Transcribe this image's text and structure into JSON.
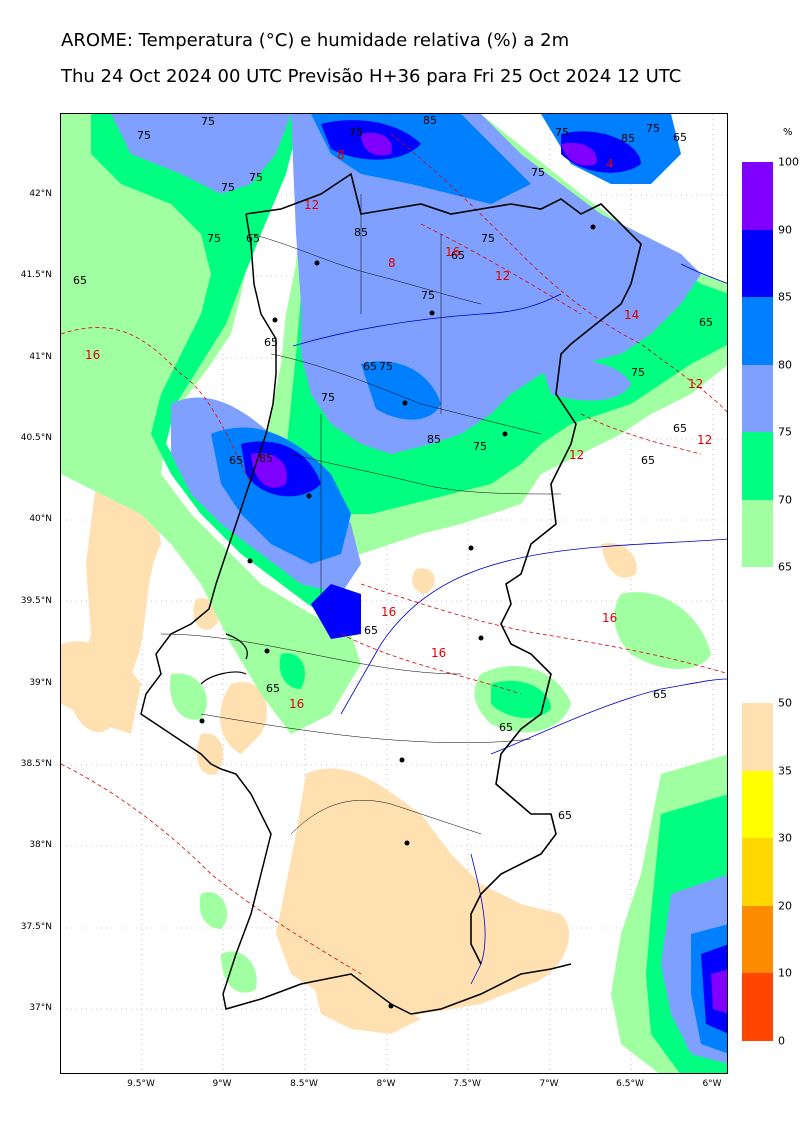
{
  "title_line1": "AROME: Temperatura (°C) e humidade relativa (%) a 2m",
  "title_line2": "Thu 24 Oct 2024 00 UTC Previsão H+36 para Fri 25 Oct 2024 12 UTC",
  "lat_labels": [
    "42°N",
    "41.5°N",
    "41°N",
    "40.5°N",
    "40°N",
    "39.5°N",
    "39°N",
    "38.5°N",
    "38°N",
    "37.5°N",
    "37°N"
  ],
  "lon_labels": [
    "9.5°W",
    "9°W",
    "8.5°W",
    "8°W",
    "7.5°W",
    "7°W",
    "6.5°W",
    "6°W"
  ],
  "humidity_colorbar": {
    "unit": "%",
    "ticks": [
      "100",
      "90",
      "85",
      "80",
      "75",
      "70",
      "65"
    ],
    "colors": [
      "#8000ff",
      "#0000ff",
      "#0080ff",
      "#80a0ff",
      "#00ff80",
      "#a0ffa0"
    ]
  },
  "temp_colorbar": {
    "ticks": [
      "50",
      "35",
      "30",
      "20",
      "10",
      "0"
    ],
    "colors": [
      "#ffe0b0",
      "#ffff00",
      "#ffd700",
      "#ff8c00",
      "#ff4500"
    ]
  },
  "contour_labels": {
    "humidity": [
      "75",
      "75",
      "75",
      "75",
      "75",
      "75",
      "75",
      "75",
      "75",
      "75",
      "75",
      "75",
      "75",
      "75",
      "75",
      "65",
      "65",
      "65",
      "65",
      "65",
      "65",
      "65",
      "65",
      "65",
      "65",
      "65",
      "65",
      "65",
      "65",
      "65",
      "85",
      "85",
      "85",
      "85",
      "85"
    ],
    "temperature": [
      "12",
      "12",
      "12",
      "12",
      "12",
      "14",
      "16",
      "16",
      "16",
      "16",
      "16",
      "16",
      "8",
      "8",
      "4"
    ]
  },
  "colors": {
    "coast": "#000000",
    "border": "#000000",
    "district": "#000000",
    "river": "#0000cc",
    "temp_contour": "#e00000",
    "cities": "#000000"
  }
}
